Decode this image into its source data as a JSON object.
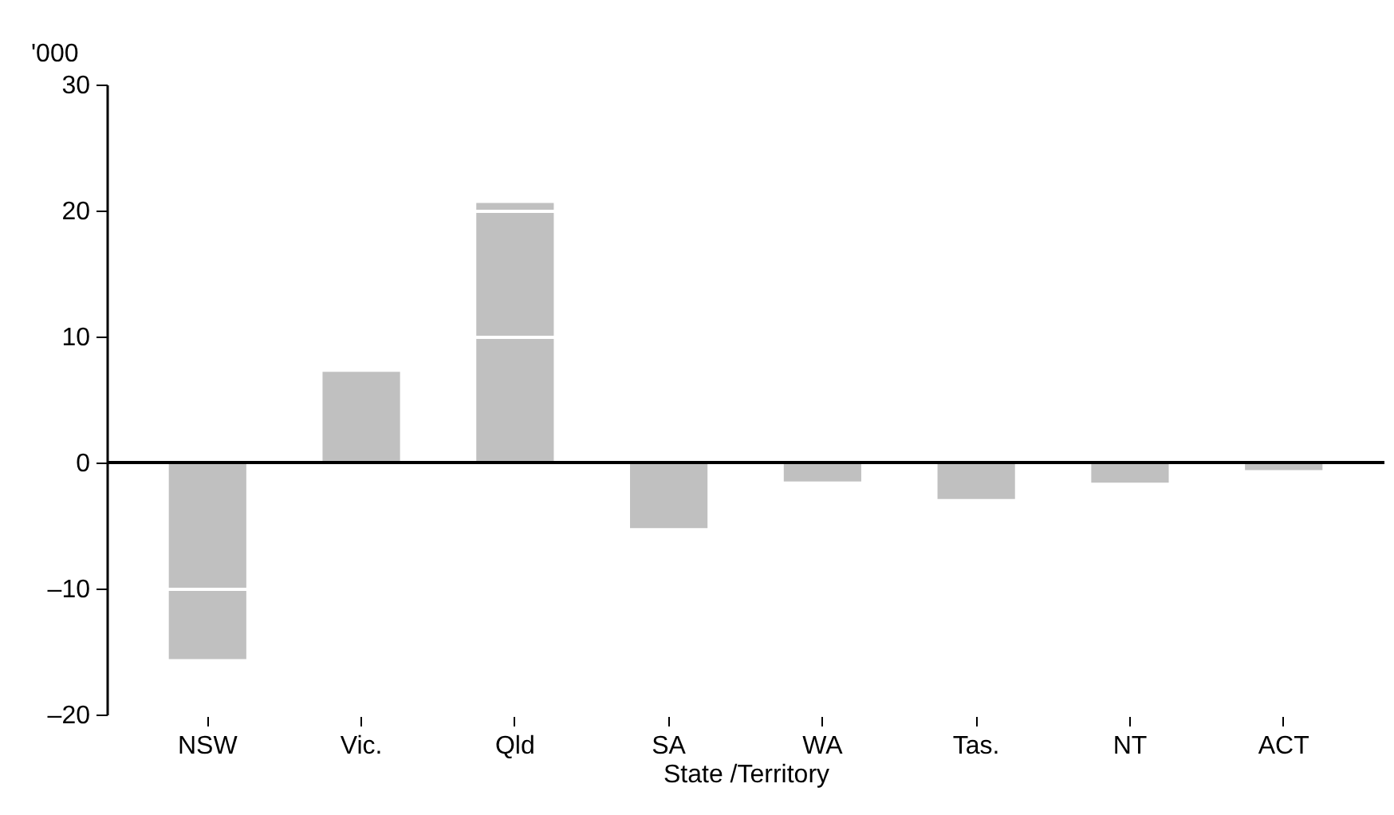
{
  "chart_data": {
    "type": "bar",
    "xlabel": "State /Territory",
    "ylabel": "'000",
    "categories": [
      "NSW",
      "Vic.",
      "Qld",
      "SA",
      "WA",
      "Tas.",
      "NT",
      "ACT"
    ],
    "values": [
      -15.6,
      7.2,
      20.6,
      -5.2,
      -1.5,
      -2.9,
      -1.6,
      -0.6
    ],
    "color": "#c0c0c0",
    "ylim": [
      -20,
      30
    ],
    "yticks": [
      {
        "value": -20,
        "label": "–20"
      },
      {
        "value": -10,
        "label": "–10"
      },
      0,
      10,
      20,
      30
    ],
    "grid": "y",
    "ref_lines": [
      {
        "axis": "y",
        "value": 0,
        "color": "#000000"
      }
    ]
  }
}
